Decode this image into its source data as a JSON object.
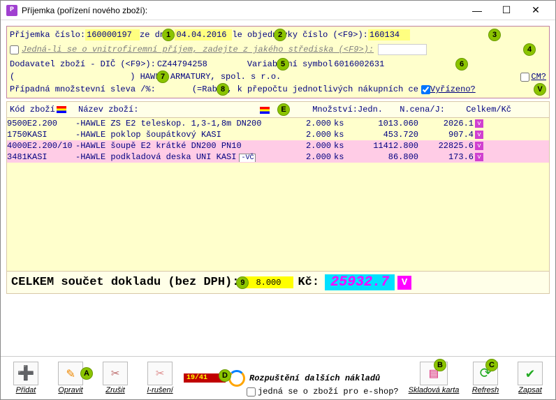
{
  "window": {
    "title": "Příjemka (pořízení nového zboží):",
    "icon_letter": "P"
  },
  "header": {
    "l_cislo": "Příjemka číslo:",
    "cislo": "160000197",
    "l_zedne": "ze dne:",
    "zedne": "04.04.2016",
    "l_obj": "le objednávky číslo (<F9>):",
    "obj": "160134",
    "vnitro": "Jedná-li se o vnitrofiremní příjem, zadejte z jakého střediska (<F9>):",
    "l_dod": "Dodavatel zboží - DIČ (<F9>):",
    "dic": "CZ44794258",
    "l_vs": "Variabilní symbol",
    "vs": "6016002631",
    "firma_pre": "(",
    "firma_post": ") HAWLE ARMATURY, spol. s r.o.",
    "l_cm": "CM?",
    "l_sleva": "Případná množstevní sleva /%:",
    "rabat": "(=Rabat, k přepočtu jednotlivých nákupních ce",
    "l_vyrizeno": "Vyřízeno?"
  },
  "gridhdr": {
    "kod": "Kód zboží",
    "nazev": "Název zboží:",
    "mnoz": "Množství:",
    "jedn": "Jedn.",
    "ncena": "N.cena/J:",
    "celkem": "Celkem/Kč"
  },
  "rows": [
    {
      "code": "9500E2.200",
      "name": "-HAWLE ZS E2 teleskop. 1,3-1,8m DN200",
      "qty": "2.000",
      "unit": "ks",
      "price": "1013.060",
      "total": "2026.1",
      "pink": false
    },
    {
      "code": "1750KASI",
      "name": "-HAWLE poklop šoupátkový KASI",
      "qty": "2.000",
      "unit": "ks",
      "price": "453.720",
      "total": "907.4",
      "pink": false
    },
    {
      "code": "4000E2.200/10",
      "name": "-HAWLE šoupě E2 krátké DN200 PN10",
      "qty": "2.000",
      "unit": "ks",
      "price": "11412.800",
      "total": "22825.6",
      "pink": true
    },
    {
      "code": "3481KASI",
      "name": "-HAWLE podkladová deska UNI KASI",
      "qty": "2.000",
      "unit": "ks",
      "price": "86.800",
      "total": "173.6",
      "pink": true,
      "vc": true
    }
  ],
  "total": {
    "label": "CELKEM součet dokladu (bez DPH):",
    "qty": "8.000",
    "kc_lbl": "Kč:",
    "kc": "25932.7"
  },
  "tools": {
    "pridat": "Přidat",
    "opravit": "Opravit",
    "zrusit": "Zrušit",
    "iruseni": "I-rušení",
    "redflag": "19/41",
    "rozp": "Rozpuštění dalších nákladů",
    "eshop": "jedná se o zboží pro e-shop?",
    "karta": "Skladová karta",
    "refresh": "Refresh",
    "zapsat": "Zapsat"
  },
  "markers": {
    "m1": "1",
    "m2": "2",
    "m3": "3",
    "m4": "4",
    "m5": "5",
    "m6": "6",
    "m7": "7",
    "m8": "8",
    "m9": "9",
    "mE": "E",
    "mV": "V",
    "mA": "A",
    "mB": "B",
    "mC": "C",
    "mD": "D"
  }
}
